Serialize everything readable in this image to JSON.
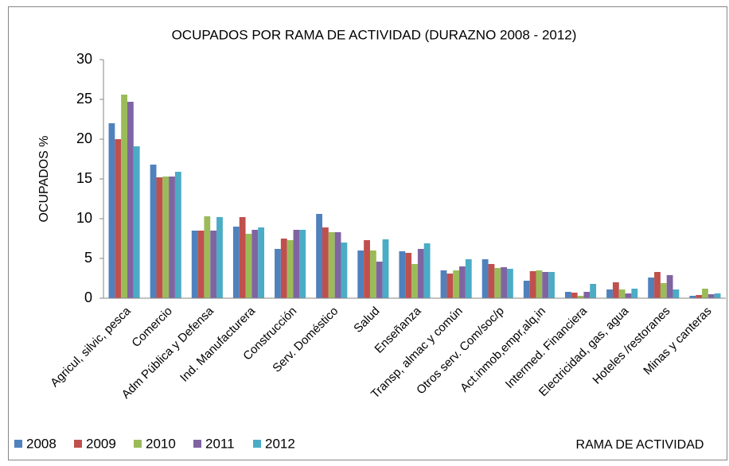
{
  "chart_data": {
    "type": "bar",
    "title": "OCUPADOS POR RAMA DE ACTIVIDAD (DURAZNO 2008 - 2012)",
    "y_label": "OCUPADOS %",
    "x_label": "RAMA DE ACTIVIDAD",
    "categories": [
      "Agricul, silvic, pesca",
      "Comercio",
      "Adm Pública y Defensa",
      "Ind. Manufacturera",
      "Construcción",
      "Serv. Doméstico",
      "Salud",
      "Enseñanza",
      "Transp, almac y común",
      "Otros serv. Com/soc/p",
      "Act.inmob,empr,alq,in",
      "Intermed. Financiera",
      "Electricidad, gas, agua",
      "Hoteles /restoranes",
      "Minas y canteras"
    ],
    "series": [
      {
        "name": "2008",
        "color": "#4f81bd",
        "values": [
          22.0,
          16.8,
          8.5,
          9.0,
          6.2,
          10.6,
          6.0,
          5.9,
          3.5,
          4.9,
          2.2,
          0.8,
          1.1,
          2.6,
          0.3
        ]
      },
      {
        "name": "2009",
        "color": "#c0504d",
        "values": [
          20.0,
          15.2,
          8.5,
          10.2,
          7.5,
          8.9,
          7.3,
          5.7,
          3.1,
          4.3,
          3.4,
          0.7,
          2.0,
          3.3,
          0.4
        ]
      },
      {
        "name": "2010",
        "color": "#9bbb59",
        "values": [
          25.6,
          15.3,
          10.3,
          8.1,
          7.3,
          8.3,
          6.0,
          4.3,
          3.5,
          3.8,
          3.5,
          0.3,
          1.1,
          1.9,
          1.2
        ]
      },
      {
        "name": "2011",
        "color": "#8064a2",
        "values": [
          24.7,
          15.3,
          8.5,
          8.6,
          8.6,
          8.3,
          4.6,
          6.2,
          4.0,
          3.9,
          3.3,
          0.8,
          0.6,
          2.9,
          0.5
        ]
      },
      {
        "name": "2012",
        "color": "#4bacc6",
        "values": [
          19.1,
          15.9,
          10.2,
          8.9,
          8.6,
          7.0,
          7.4,
          6.9,
          4.9,
          3.7,
          3.3,
          1.8,
          1.2,
          1.1,
          0.6
        ]
      }
    ],
    "ylim": [
      0,
      30
    ],
    "yticks": [
      0,
      5,
      10,
      15,
      20,
      25,
      30
    ],
    "grid": false,
    "legend": "bottom-left"
  }
}
